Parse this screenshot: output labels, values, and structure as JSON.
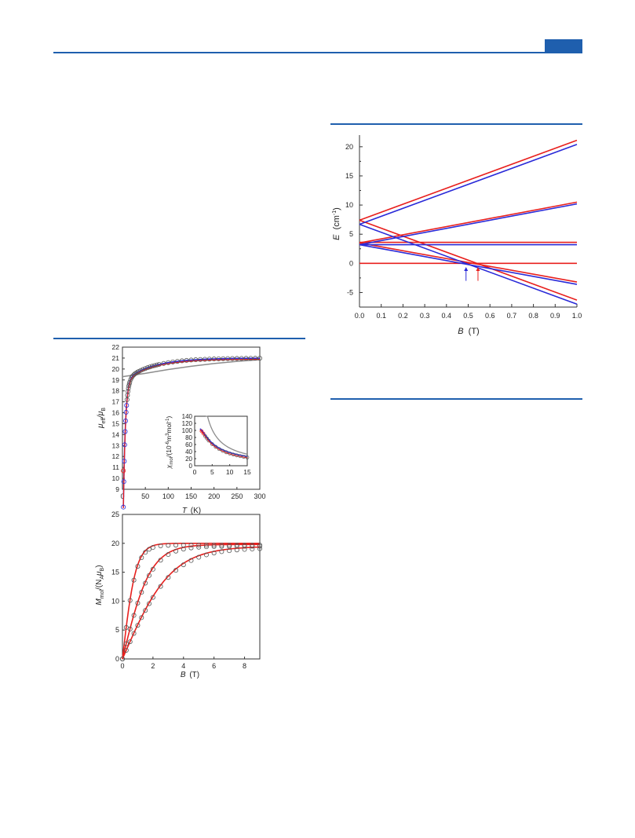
{
  "colors": {
    "accent": "#1f5fae",
    "red": "#e8201e",
    "blue": "#2a2ad8",
    "gray": "#8c8c8c"
  },
  "chart_data": [
    {
      "type": "line",
      "panel": "zeeman-energy-levels",
      "xlabel_var": "B",
      "xlabel_unit": "(T)",
      "ylabel_var": "E",
      "ylabel_unit": "(cm",
      "ylabel_sup": "-1",
      "ylabel_close": ")",
      "xlim": [
        0,
        1
      ],
      "ylim": [
        -7.5,
        22
      ],
      "xticks": [
        "0.0",
        "0.1",
        "0.2",
        "0.3",
        "0.4",
        "0.5",
        "0.6",
        "0.7",
        "0.8",
        "0.9",
        "1.0"
      ],
      "yticks": [
        "-5",
        "0",
        "5",
        "10",
        "15",
        "20"
      ],
      "series": [
        {
          "color": "red",
          "x": [
            0,
            1
          ],
          "y": [
            7.4,
            21.1
          ]
        },
        {
          "color": "red",
          "x": [
            0,
            1
          ],
          "y": [
            7.4,
            -6.3
          ]
        },
        {
          "color": "red",
          "x": [
            0,
            1
          ],
          "y": [
            3.5,
            10.5
          ]
        },
        {
          "color": "red",
          "x": [
            0,
            1
          ],
          "y": [
            3.5,
            -3.2
          ]
        },
        {
          "color": "red",
          "x": [
            0,
            1
          ],
          "y": [
            3.6,
            3.6
          ]
        },
        {
          "color": "red",
          "x": [
            0,
            1
          ],
          "y": [
            0,
            0
          ]
        },
        {
          "color": "blue",
          "x": [
            0,
            1
          ],
          "y": [
            6.7,
            20.4
          ]
        },
        {
          "color": "blue",
          "x": [
            0,
            1
          ],
          "y": [
            6.7,
            -7.0
          ]
        },
        {
          "color": "blue",
          "x": [
            0,
            1
          ],
          "y": [
            3.2,
            10.2
          ]
        },
        {
          "color": "blue",
          "x": [
            0,
            1
          ],
          "y": [
            3.2,
            -3.6
          ]
        },
        {
          "color": "blue",
          "x": [
            0,
            1
          ],
          "y": [
            3.2,
            3.2
          ]
        }
      ],
      "arrows": [
        {
          "color": "blue",
          "x": 0.49
        },
        {
          "color": "red",
          "x": 0.545
        }
      ]
    },
    {
      "type": "scatter",
      "panel": "mu-eff-vs-T",
      "xlabel_var": "T",
      "xlabel_unit": "(K)",
      "ylabel_var": "μ",
      "ylabel_sub": "eff",
      "ylabel_mid": "/μ",
      "ylabel_sub2": "B",
      "xlim": [
        0,
        300
      ],
      "ylim": [
        9,
        22
      ],
      "xticks": [
        "0",
        "50",
        "100",
        "150",
        "200",
        "250",
        "300"
      ],
      "yticks": [
        "9",
        "10",
        "11",
        "12",
        "13",
        "14",
        "15",
        "16",
        "17",
        "18",
        "19",
        "20",
        "21",
        "22"
      ],
      "points_T": [
        2,
        3,
        4,
        5,
        6,
        7,
        8,
        9,
        10,
        11,
        12,
        13,
        14,
        15,
        16,
        18,
        20,
        22,
        25,
        28,
        30,
        33,
        36,
        40,
        45,
        50,
        55,
        60,
        65,
        70,
        75,
        80,
        90,
        100,
        110,
        120,
        130,
        140,
        150,
        160,
        170,
        180,
        190,
        200,
        210,
        220,
        230,
        240,
        250,
        260,
        270,
        280,
        290,
        300
      ],
      "gray_curve": {
        "x": [
          0,
          50,
          100,
          150,
          200,
          250,
          300
        ],
        "y": [
          19.3,
          19.6,
          19.95,
          20.25,
          20.5,
          20.7,
          20.85
        ]
      },
      "inset": {
        "ylabel_var": "χ",
        "ylabel_sub": "mol",
        "ylabel_body": "/(10",
        "ylabel_sup": "-6",
        "ylabel_tail": "m",
        "ylabel_sup2": "3",
        "ylabel_tail2": "mol",
        "ylabel_sup3": "-1",
        "ylabel_close": ")",
        "xlim": [
          0,
          15
        ],
        "ylim": [
          0,
          140
        ],
        "xticks": [
          "0",
          "5",
          "10",
          "15"
        ],
        "yticks": [
          "0",
          "20",
          "40",
          "60",
          "80",
          "100",
          "120",
          "140"
        ],
        "points_T": [
          2,
          2.5,
          3,
          3.5,
          4,
          5,
          6,
          7,
          8,
          9,
          10,
          11,
          12,
          13,
          14,
          15
        ]
      }
    },
    {
      "type": "scatter",
      "panel": "magnetization-vs-B",
      "xlabel_var": "B",
      "xlabel_unit": "(T)",
      "ylabel_var": "M",
      "ylabel_sub": "mol",
      "ylabel_mid": "/(N",
      "ylabel_sub2": "A",
      "ylabel_mid2": "μ",
      "ylabel_sub3": "B",
      "ylabel_close": ")",
      "xlim": [
        0,
        9
      ],
      "ylim": [
        0,
        25
      ],
      "xticks": [
        "0",
        "2",
        "4",
        "6",
        "8"
      ],
      "yticks": [
        "0",
        "5",
        "10",
        "15",
        "20",
        "25"
      ],
      "series": [
        {
          "name": "",
          "sat": 20,
          "scale": 0.55
        },
        {
          "name": "",
          "sat": 19.8,
          "scale": 1.15
        },
        {
          "name": "",
          "sat": 19.5,
          "scale": 2.0
        }
      ],
      "points_B": [
        0,
        0.25,
        0.5,
        0.75,
        1,
        1.25,
        1.5,
        1.75,
        2,
        2.5,
        3,
        3.5,
        4,
        4.5,
        5,
        5.5,
        6,
        6.5,
        7,
        7.5,
        8,
        8.5,
        9
      ]
    }
  ]
}
